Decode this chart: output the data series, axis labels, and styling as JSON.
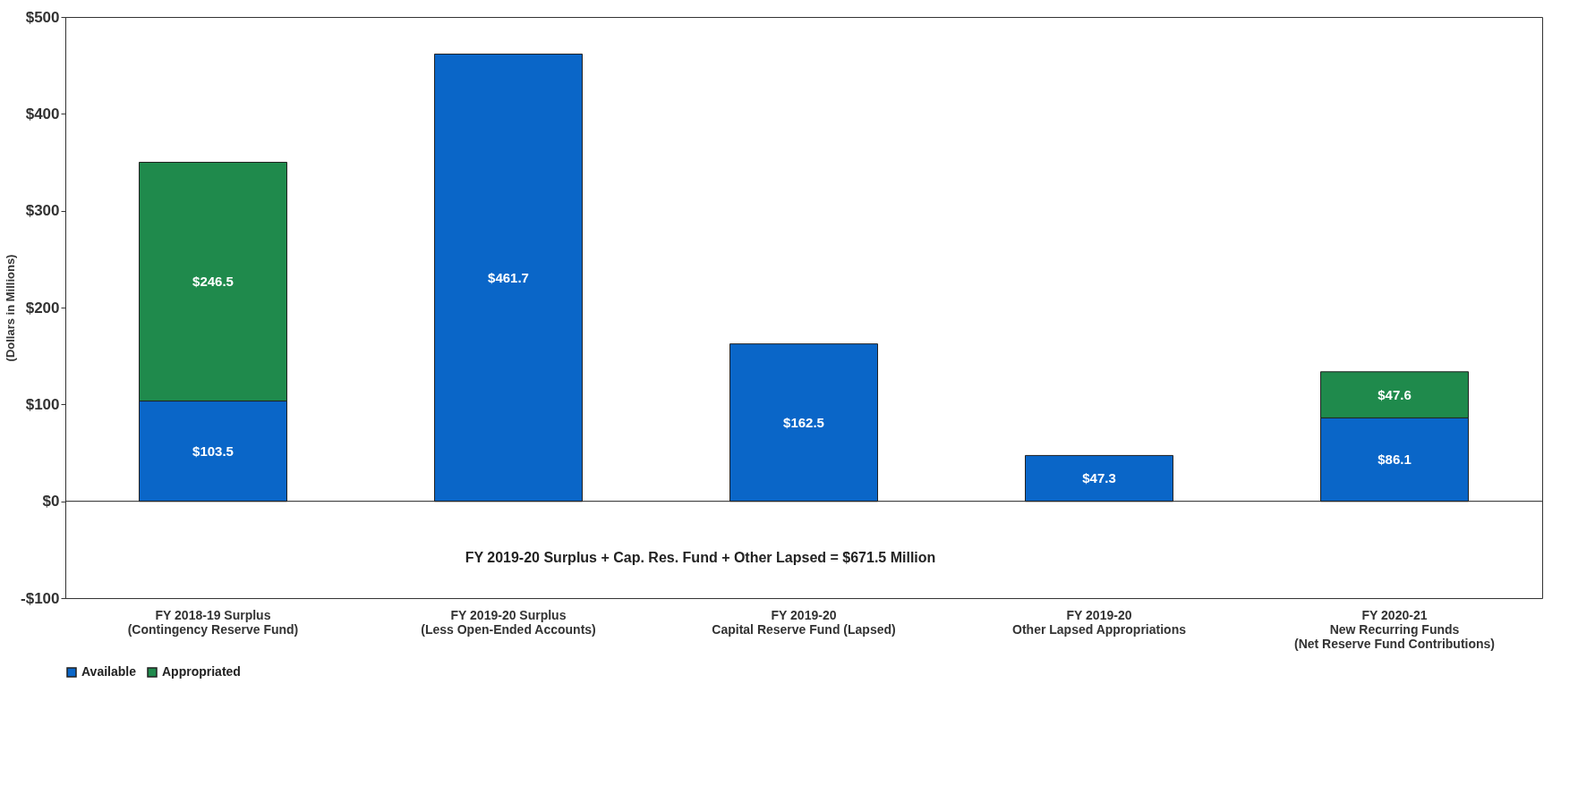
{
  "chart_data": {
    "type": "bar",
    "stacked": true,
    "ylabel": "(Dollars in Millions)",
    "categories": [
      "FY 2018-19 Surplus\n(Contingency Reserve Fund)",
      "FY 2019-20 Surplus\n(Less Open-Ended Accounts)",
      "FY 2019-20\nCapital Reserve Fund (Lapsed)",
      "FY 2019-20\nOther Lapsed Appropriations",
      "FY 2020-21\nNew Recurring Funds\n(Net Reserve Fund Contributions)"
    ],
    "series": [
      {
        "name": "Available",
        "color": "#0a66c8",
        "values": [
          103.5,
          461.7,
          162.5,
          47.3,
          86.1
        ],
        "value_labels": [
          "$103.5",
          "$461.7",
          "$162.5",
          "$47.3",
          "$86.1"
        ]
      },
      {
        "name": "Appropriated",
        "color": "#1f8a4c",
        "values": [
          246.5,
          null,
          null,
          null,
          47.6
        ],
        "value_labels": [
          "$246.5",
          null,
          null,
          null,
          "$47.6"
        ]
      }
    ],
    "ylim": [
      -100,
      500
    ],
    "yticks": [
      {
        "value": -100,
        "label": "-$100"
      },
      {
        "value": 0,
        "label": "$0"
      },
      {
        "value": 100,
        "label": "$100"
      },
      {
        "value": 200,
        "label": "$200"
      },
      {
        "value": 300,
        "label": "$300"
      },
      {
        "value": 400,
        "label": "$400"
      },
      {
        "value": 500,
        "label": "$500"
      }
    ],
    "legend": "bottom",
    "annotations": [
      "FY 2019-20 Surplus + Cap. Res. Fund + Other Lapsed =  $671.5 Million"
    ]
  }
}
